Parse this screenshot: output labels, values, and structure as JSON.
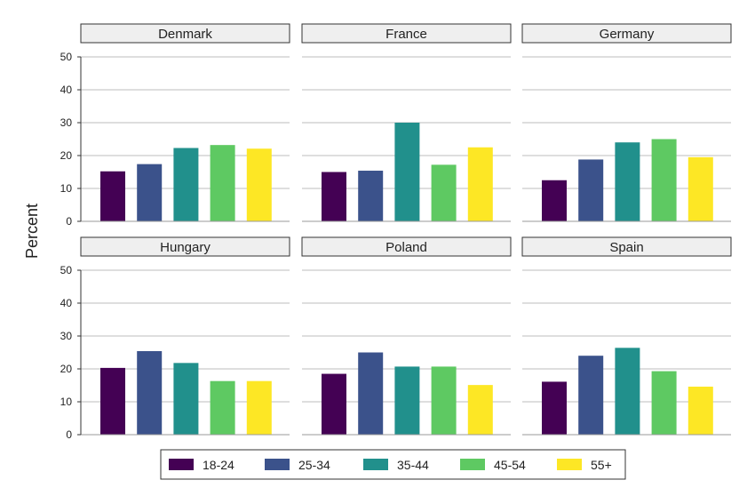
{
  "chart_data": {
    "type": "bar",
    "ylabel": "Percent",
    "ylim": [
      0,
      50
    ],
    "yticks": [
      0,
      10,
      20,
      30,
      40,
      50
    ],
    "grid": "horizontal",
    "legend_position": "bottom",
    "categories": [
      "18-24",
      "25-34",
      "35-44",
      "45-54",
      "55+"
    ],
    "colors": [
      "#440154",
      "#3b528b",
      "#21908c",
      "#5ec962",
      "#fde725"
    ],
    "panels": [
      {
        "name": "Denmark",
        "values": [
          15.2,
          17.4,
          22.3,
          23.2,
          22.1
        ]
      },
      {
        "name": "France",
        "values": [
          15.0,
          15.4,
          30.0,
          17.2,
          22.5
        ]
      },
      {
        "name": "Germany",
        "values": [
          12.5,
          18.8,
          24.0,
          25.0,
          19.5
        ]
      },
      {
        "name": "Hungary",
        "values": [
          20.3,
          25.4,
          21.8,
          16.3,
          16.3
        ]
      },
      {
        "name": "Poland",
        "values": [
          18.5,
          25.0,
          20.7,
          20.7,
          15.1
        ]
      },
      {
        "name": "Spain",
        "values": [
          16.1,
          24.0,
          26.4,
          19.3,
          14.6
        ]
      }
    ]
  }
}
